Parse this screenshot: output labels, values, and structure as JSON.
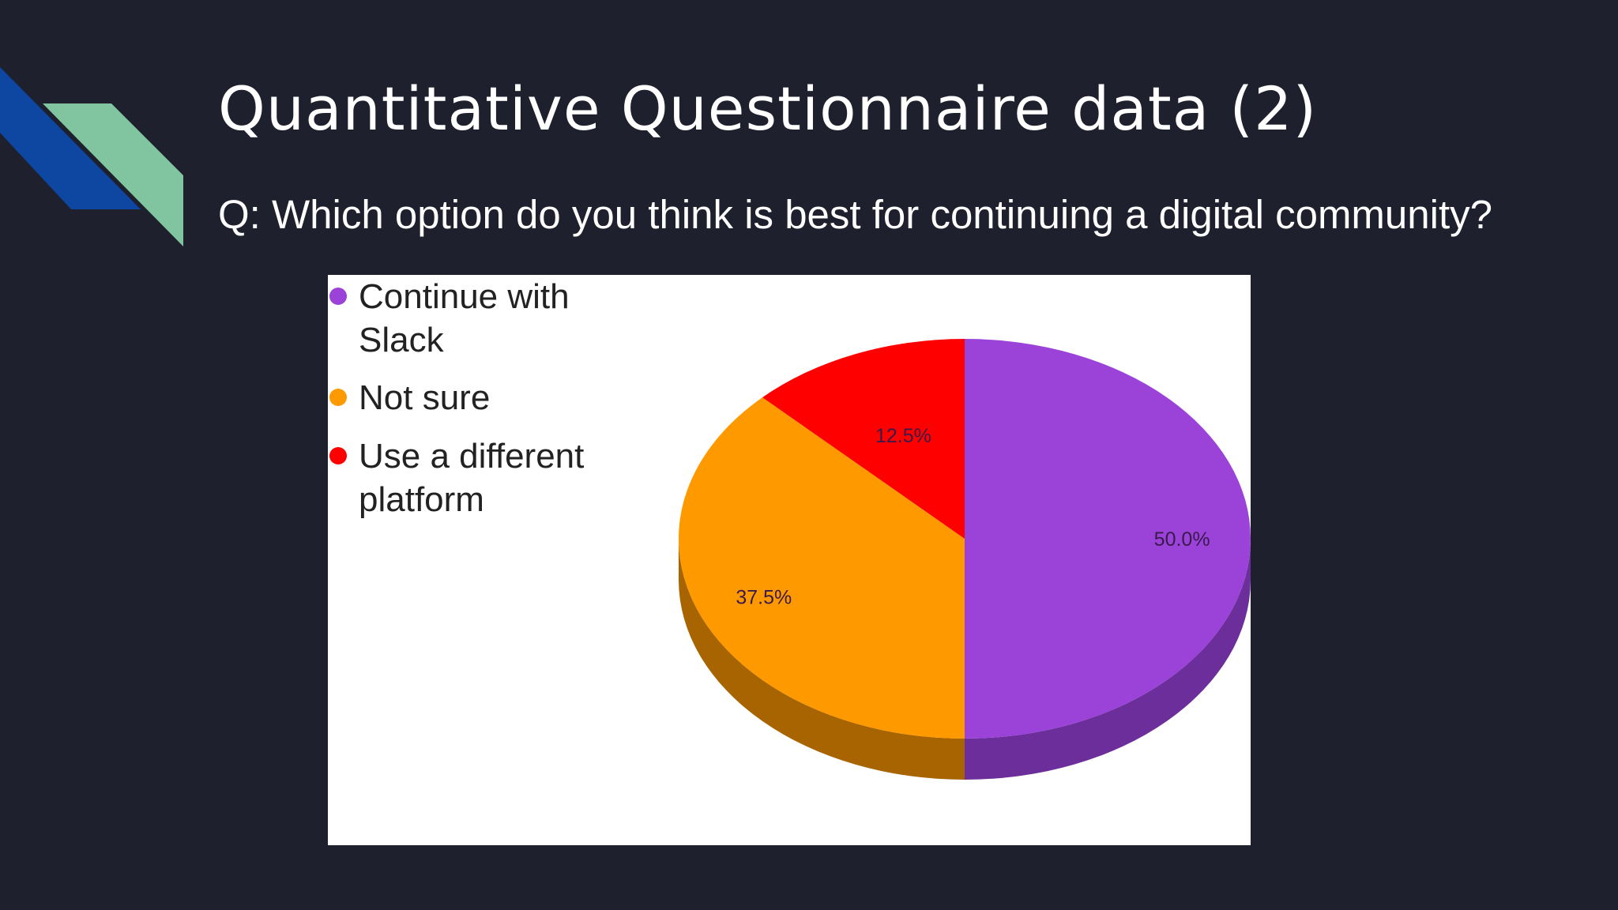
{
  "slide": {
    "title": "Quantitative Questionnaire data (2)",
    "question": "Q: Which option do you think is best for continuing a digital community?"
  },
  "colors": {
    "background": "#1e202d",
    "decor_blue": "#0d47a1",
    "decor_green": "#81c4a0",
    "text": "#ffffff"
  },
  "chart_data": {
    "type": "pie",
    "style": "3d",
    "legend_position": "top-left",
    "slices": [
      {
        "label": "Continue with Slack",
        "value": 50.0,
        "display": "50.0%",
        "color": "#9b42d9",
        "side_color": "#6b2e9a"
      },
      {
        "label": "Not sure",
        "value": 37.5,
        "display": "37.5%",
        "color": "#ff9900",
        "side_color": "#a86400"
      },
      {
        "label": "Use a different platform",
        "value": 12.5,
        "display": "12.5%",
        "color": "#ff0000",
        "side_color": "#a80000"
      }
    ]
  }
}
